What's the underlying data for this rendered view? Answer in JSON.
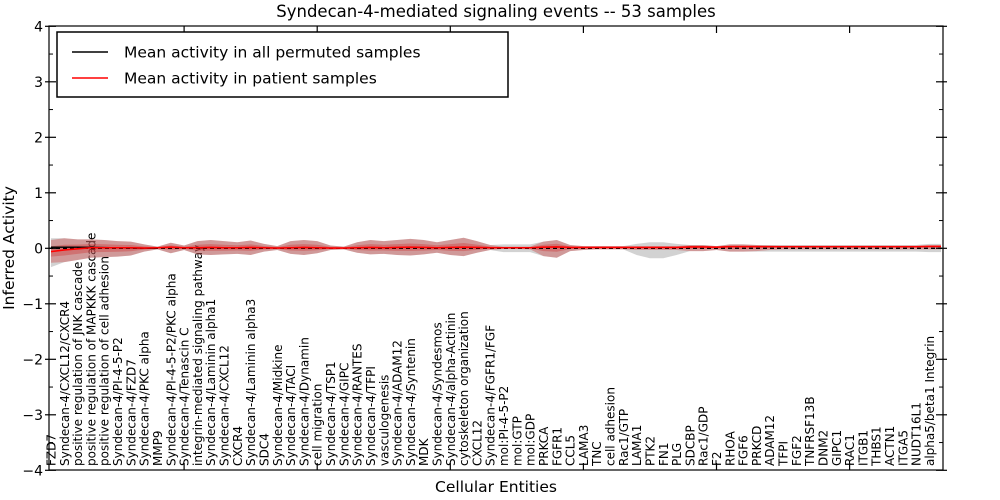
{
  "chart_data": {
    "type": "line",
    "title": "Syndecan-4-mediated signaling events -- 53 samples",
    "xlabel": "Cellular Entities",
    "ylabel": "Inferred Activity",
    "ylim": [
      -4,
      4
    ],
    "grid": false,
    "legend_position": "upper left",
    "axis": {
      "ytick_values": [
        4,
        3,
        2,
        1,
        0,
        -1,
        -2,
        -3,
        -4
      ],
      "ytick_labels": [
        "4",
        "3",
        "2",
        "1",
        "0",
        "−1",
        "−2",
        "−3",
        "−4"
      ],
      "ytick_minor_step": 0.5,
      "xtick_major_every": 10
    },
    "categories": [
      "FZD7",
      "Syndecan-4/CXCL12/CXCR4",
      "positive regulation of JNK cascade",
      "positive regulation of MAPKKK cascade",
      "positive regulation of cell adhesion",
      "Syndecan-4/PI-4-5-P2",
      "Syndecan-4/FZD7",
      "Syndecan-4/PKC alpha",
      "MMP9",
      "Syndecan-4/PI-4-5-P2/PKC alpha",
      "Syndecan-4/Tenascin C",
      "integrin-mediated signaling pathway",
      "Syndecan-4/Laminin alpha1",
      "Syndecan-4/CXCL12",
      "CXCR4",
      "Syndecan-4/Laminin alpha3",
      "SDC4",
      "Syndecan-4/Midkine",
      "Syndecan-4/TACI",
      "Syndecan-4/Dynamin",
      "cell migration",
      "Syndecan-4/TSP1",
      "Syndecan-4/GIPC",
      "Syndecan-4/RANTES",
      "Syndecan-4/TFPI",
      "vasculogenesis",
      "Syndecan-4/ADAM12",
      "Syndecan-4/Syntenin",
      "MDK",
      "Syndecan-4/Syndesmos",
      "Syndecan-4/alpha-Actinin",
      "cytoskeleton organization",
      "CXCL12",
      "Syndecan-4/FGFR1/FGF",
      "mol:PI-4-5-P2",
      "mol:GTP",
      "mol:GDP",
      "PRKCA",
      "FGFR1",
      "CCL5",
      "LAMA3",
      "TNC",
      "cell adhesion",
      "Rac1/GTP",
      "LAMA1",
      "PTK2",
      "FN1",
      "PLG",
      "SDCBP",
      "Rac1/GDP",
      "F2",
      "RHOA",
      "FGF6",
      "PRKCD",
      "ADAM12",
      "TFPI",
      "FGF2",
      "TNFRSF13B",
      "DNM2",
      "GIPC1",
      "RAC1",
      "ITGB1",
      "THBS1",
      "ACTN1",
      "ITGA5",
      "NUDT16L1",
      "alpha5/beta1 Integrin"
    ],
    "series": [
      {
        "name": "Mean activity in all permuted samples",
        "color": "#000000",
        "values": [
          0,
          0,
          0,
          0,
          0,
          0,
          0,
          0,
          0,
          0,
          0,
          0,
          0,
          0,
          0,
          0,
          0,
          0,
          0,
          0,
          0,
          0,
          0,
          0,
          0,
          0,
          0,
          0,
          0,
          0,
          0,
          0,
          0,
          0,
          0,
          0,
          0,
          0,
          0,
          0,
          0,
          0,
          0,
          0,
          0,
          0,
          0,
          0,
          0,
          0,
          0,
          0,
          0,
          0,
          0,
          0,
          0,
          0,
          0,
          0,
          0,
          0,
          0,
          0,
          0,
          0,
          0
        ],
        "visible_deviation_segment": {
          "start_index": 0,
          "values": [
            0.02,
            0.02,
            0.02,
            0.018,
            0.014,
            0.01,
            0.006,
            0.002,
            0
          ]
        }
      },
      {
        "name": "Mean activity in patient samples",
        "color": "#ff0000",
        "values": [
          -0.06,
          -0.03,
          -0.01,
          0.01,
          0.01,
          0.01,
          0.01,
          0.005,
          0.01,
          0.02,
          0.01,
          0.01,
          0.015,
          0.01,
          0.01,
          0.015,
          0.01,
          0.005,
          0.01,
          0.015,
          0.01,
          0.005,
          0.005,
          0.01,
          0.015,
          0.01,
          0.015,
          0.02,
          0.015,
          0.01,
          0.015,
          0.02,
          0.015,
          0.01,
          0.01,
          0.01,
          0.01,
          0.02,
          0.025,
          0.015,
          0.015,
          0.015,
          0.015,
          0.015,
          0.015,
          0.015,
          0.015,
          0.015,
          0.025,
          0.025,
          0.02,
          0.03,
          0.03,
          0.03,
          0.03,
          0.03,
          0.03,
          0.03,
          0.03,
          0.03,
          0.03,
          0.03,
          0.03,
          0.03,
          0.03,
          0.03,
          0.035
        ]
      }
    ],
    "bands": [
      {
        "name": "permuted-samples-std-band",
        "color": "#888888",
        "opacity": 0.38,
        "upper": [
          0.18,
          0.18,
          0.16,
          0.16,
          0.15,
          0.13,
          0.12,
          0.07,
          0.03,
          0.1,
          0.05,
          0.13,
          0.15,
          0.13,
          0.11,
          0.14,
          0.08,
          0.04,
          0.13,
          0.15,
          0.13,
          0.05,
          0.03,
          0.11,
          0.15,
          0.13,
          0.15,
          0.17,
          0.15,
          0.11,
          0.15,
          0.19,
          0.13,
          0.06,
          0.07,
          0.07,
          0.07,
          0.12,
          0.15,
          0.06,
          0.04,
          0.04,
          0.04,
          0.04,
          0.08,
          0.11,
          0.11,
          0.08,
          0.06,
          0.06,
          0.04,
          0.07,
          0.07,
          0.06,
          0.06,
          0.06,
          0.06,
          0.06,
          0.06,
          0.06,
          0.06,
          0.06,
          0.06,
          0.06,
          0.06,
          0.06,
          0.08
        ],
        "lower": [
          -0.34,
          -0.25,
          -0.21,
          -0.17,
          -0.16,
          -0.15,
          -0.13,
          -0.06,
          -0.02,
          -0.09,
          -0.03,
          -0.11,
          -0.12,
          -0.11,
          -0.1,
          -0.12,
          -0.06,
          -0.03,
          -0.1,
          -0.12,
          -0.09,
          -0.03,
          -0.02,
          -0.08,
          -0.11,
          -0.1,
          -0.12,
          -0.13,
          -0.11,
          -0.08,
          -0.12,
          -0.14,
          -0.08,
          -0.03,
          -0.07,
          -0.07,
          -0.07,
          -0.14,
          -0.17,
          -0.05,
          -0.03,
          -0.02,
          -0.02,
          -0.02,
          -0.12,
          -0.18,
          -0.18,
          -0.12,
          -0.05,
          -0.05,
          -0.03,
          -0.06,
          -0.06,
          -0.06,
          -0.06,
          -0.06,
          -0.06,
          -0.06,
          -0.06,
          -0.06,
          -0.06,
          -0.06,
          -0.06,
          -0.06,
          -0.06,
          -0.06,
          -0.07
        ]
      },
      {
        "name": "patient-samples-std-band",
        "color": "#cc2222",
        "opacity": 0.32,
        "upper": [
          0.15,
          0.18,
          0.16,
          0.16,
          0.15,
          0.13,
          0.12,
          0.07,
          0.03,
          0.1,
          0.05,
          0.13,
          0.15,
          0.13,
          0.11,
          0.14,
          0.08,
          0.04,
          0.13,
          0.15,
          0.13,
          0.05,
          0.03,
          0.11,
          0.15,
          0.13,
          0.15,
          0.17,
          0.15,
          0.11,
          0.15,
          0.19,
          0.13,
          0.06,
          0.03,
          0.03,
          0.03,
          0.12,
          0.15,
          0.06,
          0.04,
          0.04,
          0.04,
          0.04,
          0.04,
          0.04,
          0.04,
          0.04,
          0.06,
          0.06,
          0.04,
          0.07,
          0.07,
          0.06,
          0.05,
          0.04,
          0.04,
          0.04,
          0.04,
          0.04,
          0.04,
          0.04,
          0.04,
          0.04,
          0.04,
          0.04,
          0.05
        ],
        "lower": [
          -0.26,
          -0.25,
          -0.21,
          -0.17,
          -0.16,
          -0.15,
          -0.13,
          -0.06,
          -0.02,
          -0.09,
          -0.03,
          -0.11,
          -0.12,
          -0.11,
          -0.1,
          -0.12,
          -0.06,
          -0.03,
          -0.1,
          -0.12,
          -0.09,
          -0.03,
          -0.02,
          -0.08,
          -0.11,
          -0.1,
          -0.12,
          -0.13,
          -0.11,
          -0.08,
          -0.12,
          -0.14,
          -0.08,
          -0.03,
          -0.01,
          -0.01,
          -0.02,
          -0.14,
          -0.17,
          -0.05,
          -0.03,
          -0.02,
          -0.02,
          -0.02,
          -0.03,
          -0.03,
          -0.03,
          -0.03,
          -0.05,
          -0.05,
          -0.03,
          -0.06,
          -0.06,
          -0.05,
          -0.03,
          -0.02,
          -0.02,
          -0.02,
          -0.02,
          -0.02,
          -0.02,
          -0.02,
          -0.02,
          -0.02,
          -0.02,
          -0.02,
          -0.02
        ]
      }
    ]
  }
}
